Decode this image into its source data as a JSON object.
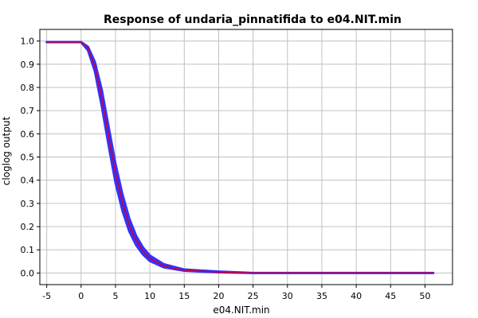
{
  "chart_data": {
    "type": "line",
    "title": "Response of undaria_pinnatifida to e04.NIT.min",
    "xlabel": "e04.NIT.min",
    "ylabel": "cloglog output",
    "xlim": [
      -6,
      54
    ],
    "ylim": [
      -0.05,
      1.05
    ],
    "xticks": [
      -5,
      0,
      5,
      10,
      15,
      20,
      25,
      30,
      35,
      40,
      45,
      50
    ],
    "yticks": [
      0.0,
      0.1,
      0.2,
      0.3,
      0.4,
      0.5,
      0.6,
      0.7,
      0.8,
      0.9,
      1.0
    ],
    "grid": true,
    "series": [
      {
        "color": "#3333ff",
        "x": [
          -5,
          0,
          1,
          2,
          3,
          4,
          5,
          6,
          7,
          8,
          9,
          10,
          12,
          15,
          20,
          25,
          30,
          40,
          51.2
        ],
        "y_upper": [
          0.995,
          0.995,
          0.975,
          0.91,
          0.79,
          0.63,
          0.47,
          0.34,
          0.235,
          0.16,
          0.11,
          0.075,
          0.038,
          0.015,
          0.006,
          0.0,
          0.0,
          0.0,
          0.0
        ],
        "y_lower": [
          0.995,
          0.995,
          0.96,
          0.87,
          0.72,
          0.55,
          0.39,
          0.27,
          0.18,
          0.12,
          0.08,
          0.052,
          0.025,
          0.01,
          0.003,
          0.0,
          0.0,
          0.0,
          0.0
        ]
      },
      {
        "color": "#cc0033",
        "x": [
          -5,
          0,
          1,
          2,
          3,
          4,
          5,
          6,
          7,
          8,
          9,
          10,
          12,
          15,
          20,
          25,
          30,
          40,
          51.2
        ],
        "y": [
          0.995,
          0.995,
          0.97,
          0.89,
          0.755,
          0.59,
          0.43,
          0.305,
          0.205,
          0.14,
          0.095,
          0.062,
          0.03,
          0.012,
          0.004,
          0.0,
          0.0,
          0.0,
          0.0
        ]
      }
    ]
  }
}
